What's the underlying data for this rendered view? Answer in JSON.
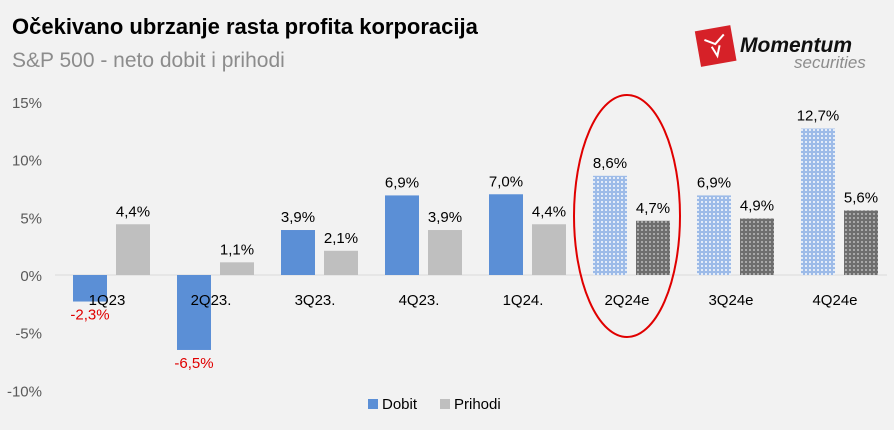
{
  "title": "Očekivano ubrzanje rasta profita korporacija",
  "subtitle": "S&P 500 - neto dobit i prihodi",
  "logo": {
    "text": "Momentum",
    "subtext": "securities",
    "color": "#d62128"
  },
  "chart_data": {
    "type": "bar",
    "categories": [
      "1Q23",
      "2Q23.",
      "3Q23.",
      "4Q23.",
      "1Q24.",
      "2Q24e",
      "3Q24e",
      "4Q24e"
    ],
    "series": [
      {
        "name": "Dobit",
        "values": [
          -2.3,
          -6.5,
          3.9,
          6.9,
          7.0,
          8.6,
          6.9,
          12.7
        ],
        "labels": [
          "-2,3%",
          "-6,5%",
          "3,9%",
          "6,9%",
          "7,0%",
          "8,6%",
          "6,9%",
          "12,7%"
        ],
        "color": "#5b8fd6",
        "estimate_color": "#9dbbe8"
      },
      {
        "name": "Prihodi",
        "values": [
          4.4,
          1.1,
          2.1,
          3.9,
          4.4,
          4.7,
          4.9,
          5.6
        ],
        "labels": [
          "4,4%",
          "1,1%",
          "2,1%",
          "3,9%",
          "4,4%",
          "4,7%",
          "4,9%",
          "5,6%"
        ],
        "color": "#bfbfbf",
        "estimate_color": "#7a7a7a"
      }
    ],
    "estimated_from_index": 5,
    "highlighted_category": "2Q24e",
    "highlight_color": "#e00000",
    "negative_label_color": "#e00000",
    "ylim": [
      -10,
      15
    ],
    "yticks": [
      "15%",
      "10%",
      "5%",
      "0%",
      "-5%",
      "-10%"
    ],
    "ytick_values": [
      15,
      10,
      5,
      0,
      -5,
      -10
    ],
    "grid": false,
    "legend": "bottom"
  }
}
